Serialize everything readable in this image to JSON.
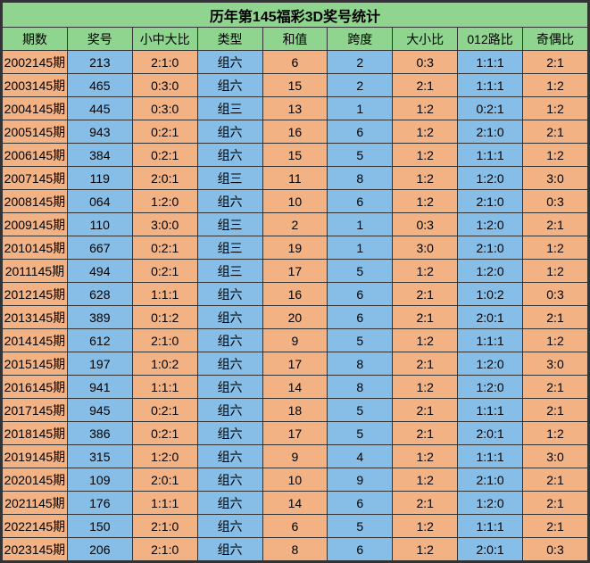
{
  "title": "历年第145福彩3D奖号统计",
  "colors": {
    "header_bg": "#8fd48f",
    "blue_bg": "#87bee8",
    "orange_bg": "#f2b284",
    "text": "#000000",
    "border": "#333333"
  },
  "columns": [
    {
      "key": "period",
      "label": "期数",
      "class": "col-period"
    },
    {
      "key": "number",
      "label": "奖号",
      "class": "col-num"
    },
    {
      "key": "smb",
      "label": "小中大比",
      "class": "col-ratio1"
    },
    {
      "key": "type",
      "label": "类型",
      "class": "col-type"
    },
    {
      "key": "sum",
      "label": "和值",
      "class": "col-sum"
    },
    {
      "key": "span",
      "label": "跨度",
      "class": "col-span"
    },
    {
      "key": "bigsmall",
      "label": "大小比",
      "class": "col-bigsmall"
    },
    {
      "key": "route012",
      "label": "012路比",
      "class": "col-012"
    },
    {
      "key": "oddeven",
      "label": "奇偶比",
      "class": "col-odd"
    }
  ],
  "column_colors": [
    "orange",
    "blue",
    "orange",
    "blue",
    "orange",
    "blue",
    "orange",
    "blue",
    "orange"
  ],
  "rows": [
    {
      "period": "2002145期",
      "number": "213",
      "smb": "2:1:0",
      "type": "组六",
      "sum": "6",
      "span": "2",
      "bigsmall": "0:3",
      "route012": "1:1:1",
      "oddeven": "2:1"
    },
    {
      "period": "2003145期",
      "number": "465",
      "smb": "0:3:0",
      "type": "组六",
      "sum": "15",
      "span": "2",
      "bigsmall": "2:1",
      "route012": "1:1:1",
      "oddeven": "1:2"
    },
    {
      "period": "2004145期",
      "number": "445",
      "smb": "0:3:0",
      "type": "组三",
      "sum": "13",
      "span": "1",
      "bigsmall": "1:2",
      "route012": "0:2:1",
      "oddeven": "1:2"
    },
    {
      "period": "2005145期",
      "number": "943",
      "smb": "0:2:1",
      "type": "组六",
      "sum": "16",
      "span": "6",
      "bigsmall": "1:2",
      "route012": "2:1:0",
      "oddeven": "2:1"
    },
    {
      "period": "2006145期",
      "number": "384",
      "smb": "0:2:1",
      "type": "组六",
      "sum": "15",
      "span": "5",
      "bigsmall": "1:2",
      "route012": "1:1:1",
      "oddeven": "1:2"
    },
    {
      "period": "2007145期",
      "number": "119",
      "smb": "2:0:1",
      "type": "组三",
      "sum": "11",
      "span": "8",
      "bigsmall": "1:2",
      "route012": "1:2:0",
      "oddeven": "3:0"
    },
    {
      "period": "2008145期",
      "number": "064",
      "smb": "1:2:0",
      "type": "组六",
      "sum": "10",
      "span": "6",
      "bigsmall": "1:2",
      "route012": "2:1:0",
      "oddeven": "0:3"
    },
    {
      "period": "2009145期",
      "number": "110",
      "smb": "3:0:0",
      "type": "组三",
      "sum": "2",
      "span": "1",
      "bigsmall": "0:3",
      "route012": "1:2:0",
      "oddeven": "2:1"
    },
    {
      "period": "2010145期",
      "number": "667",
      "smb": "0:2:1",
      "type": "组三",
      "sum": "19",
      "span": "1",
      "bigsmall": "3:0",
      "route012": "2:1:0",
      "oddeven": "1:2"
    },
    {
      "period": "2011145期",
      "number": "494",
      "smb": "0:2:1",
      "type": "组三",
      "sum": "17",
      "span": "5",
      "bigsmall": "1:2",
      "route012": "1:2:0",
      "oddeven": "1:2"
    },
    {
      "period": "2012145期",
      "number": "628",
      "smb": "1:1:1",
      "type": "组六",
      "sum": "16",
      "span": "6",
      "bigsmall": "2:1",
      "route012": "1:0:2",
      "oddeven": "0:3"
    },
    {
      "period": "2013145期",
      "number": "389",
      "smb": "0:1:2",
      "type": "组六",
      "sum": "20",
      "span": "6",
      "bigsmall": "2:1",
      "route012": "2:0:1",
      "oddeven": "2:1"
    },
    {
      "period": "2014145期",
      "number": "612",
      "smb": "2:1:0",
      "type": "组六",
      "sum": "9",
      "span": "5",
      "bigsmall": "1:2",
      "route012": "1:1:1",
      "oddeven": "1:2"
    },
    {
      "period": "2015145期",
      "number": "197",
      "smb": "1:0:2",
      "type": "组六",
      "sum": "17",
      "span": "8",
      "bigsmall": "2:1",
      "route012": "1:2:0",
      "oddeven": "3:0"
    },
    {
      "period": "2016145期",
      "number": "941",
      "smb": "1:1:1",
      "type": "组六",
      "sum": "14",
      "span": "8",
      "bigsmall": "1:2",
      "route012": "1:2:0",
      "oddeven": "2:1"
    },
    {
      "period": "2017145期",
      "number": "945",
      "smb": "0:2:1",
      "type": "组六",
      "sum": "18",
      "span": "5",
      "bigsmall": "2:1",
      "route012": "1:1:1",
      "oddeven": "2:1"
    },
    {
      "period": "2018145期",
      "number": "386",
      "smb": "0:2:1",
      "type": "组六",
      "sum": "17",
      "span": "5",
      "bigsmall": "2:1",
      "route012": "2:0:1",
      "oddeven": "1:2"
    },
    {
      "period": "2019145期",
      "number": "315",
      "smb": "1:2:0",
      "type": "组六",
      "sum": "9",
      "span": "4",
      "bigsmall": "1:2",
      "route012": "1:1:1",
      "oddeven": "3:0"
    },
    {
      "period": "2020145期",
      "number": "109",
      "smb": "2:0:1",
      "type": "组六",
      "sum": "10",
      "span": "9",
      "bigsmall": "1:2",
      "route012": "2:1:0",
      "oddeven": "2:1"
    },
    {
      "period": "2021145期",
      "number": "176",
      "smb": "1:1:1",
      "type": "组六",
      "sum": "14",
      "span": "6",
      "bigsmall": "2:1",
      "route012": "1:2:0",
      "oddeven": "2:1"
    },
    {
      "period": "2022145期",
      "number": "150",
      "smb": "2:1:0",
      "type": "组六",
      "sum": "6",
      "span": "5",
      "bigsmall": "1:2",
      "route012": "1:1:1",
      "oddeven": "2:1"
    },
    {
      "period": "2023145期",
      "number": "206",
      "smb": "2:1:0",
      "type": "组六",
      "sum": "8",
      "span": "6",
      "bigsmall": "1:2",
      "route012": "2:0:1",
      "oddeven": "0:3"
    }
  ]
}
